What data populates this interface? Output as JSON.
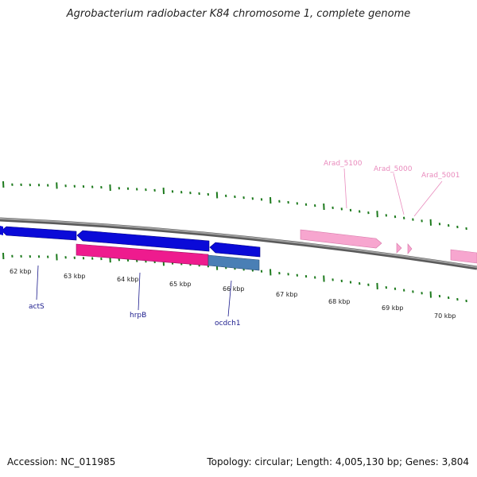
{
  "title": "Agrobacterium radiobacter K84 chromosome 1, complete genome",
  "footer": {
    "accession_label": "Accession: NC_011985",
    "summary": "Topology: circular; Length: 4,005,130 bp; Genes: 3,804"
  },
  "scale_labels": [
    "62 kbp",
    "63 kbp",
    "64 kbp",
    "65 kbp",
    "66 kbp",
    "67 kbp",
    "68 kbp",
    "69 kbp",
    "70 kbp"
  ],
  "gene_labels": {
    "actS": "actS",
    "hrpB": "hrpB",
    "ocdch1": "ocdch1",
    "arad_5100": "Arad_5100",
    "arad_5000": "Arad_5000",
    "arad_5001": "Arad_5001"
  },
  "colors": {
    "forward_gene": "#1010e0",
    "reverse_gene_magenta": "#ee1b8e",
    "reverse_gene_steel": "#4a7fb5",
    "pseudo_gene": "#f7a6cf",
    "backbone": "#8a8a8a",
    "tick": "#1d7a1d"
  }
}
